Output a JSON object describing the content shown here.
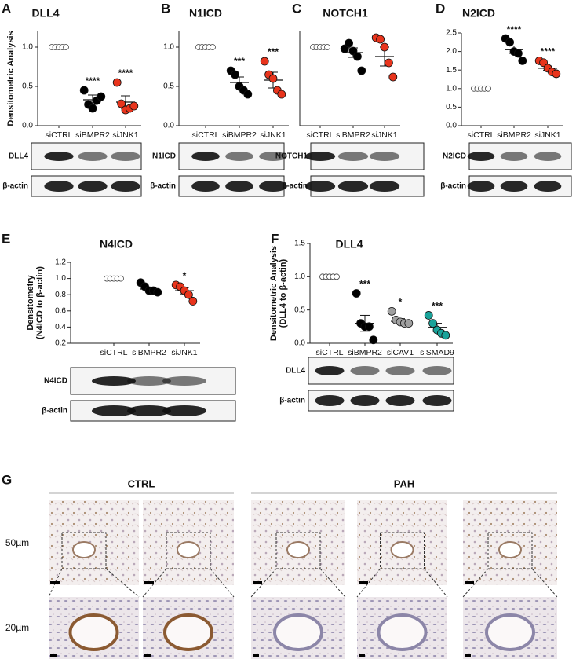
{
  "chart_data": [
    {
      "type": "dot",
      "panel": "A",
      "title": "DLL4",
      "ylabel": [
        "Densitometric Analysis"
      ],
      "categories": [
        "siCTRL",
        "siBMPR2",
        "siJNK1"
      ],
      "colors": [
        "#ffffff",
        "#000000",
        "#e8341c"
      ],
      "points": [
        [
          1,
          1,
          1,
          1,
          1
        ],
        [
          0.45,
          0.27,
          0.22,
          0.32,
          0.37
        ],
        [
          0.55,
          0.28,
          0.2,
          0.22,
          0.25
        ]
      ],
      "means": [
        1,
        0.33,
        0.3
      ],
      "sem": [
        0,
        0.06,
        0.08
      ],
      "stars": [
        null,
        "****",
        "****"
      ],
      "ylim": [
        0,
        1.2
      ],
      "yticks": [
        {
          "value": 0,
          "label": "0.0"
        },
        {
          "value": 0.5,
          "label": "0.5"
        },
        {
          "value": 1,
          "label": "1.0"
        }
      ],
      "blots": [
        {
          "label": "DLL4"
        },
        {
          "label": "β-actin"
        }
      ]
    },
    {
      "type": "dot",
      "panel": "B",
      "title": "N1ICD",
      "ylabel": [],
      "categories": [
        "siCTRL",
        "siBMPR2",
        "siJNK1"
      ],
      "colors": [
        "#ffffff",
        "#000000",
        "#e8341c"
      ],
      "points": [
        [
          1,
          1,
          1,
          1,
          1
        ],
        [
          0.7,
          0.65,
          0.5,
          0.45,
          0.4
        ],
        [
          0.82,
          0.65,
          0.6,
          0.45,
          0.4
        ]
      ],
      "means": [
        1,
        0.55,
        0.58
      ],
      "sem": [
        0,
        0.07,
        0.1
      ],
      "stars": [
        null,
        "***",
        "***"
      ],
      "ylim": [
        0,
        1.2
      ],
      "yticks": [
        {
          "value": 0,
          "label": "0.0"
        },
        {
          "value": 0.5,
          "label": "0.5"
        },
        {
          "value": 1,
          "label": "1.0"
        }
      ],
      "blots": [
        {
          "label": "N1ICD"
        },
        {
          "label": "β-actin"
        }
      ]
    },
    {
      "type": "dot",
      "panel": "C",
      "title": "NOTCH1",
      "ylabel": [],
      "categories": [
        "siCTRL",
        "siBMPR2",
        "siJNK1"
      ],
      "colors": [
        "#ffffff",
        "#000000",
        "#e8341c"
      ],
      "points": [
        [
          1,
          1,
          1,
          1,
          1
        ],
        [
          0.98,
          1.05,
          0.95,
          0.88,
          0.7
        ],
        [
          1.12,
          1.1,
          1.0,
          0.8,
          0.62
        ]
      ],
      "means": [
        1,
        0.93,
        0.88
      ],
      "sem": [
        0,
        0.06,
        0.12
      ],
      "stars": [
        null,
        null,
        null
      ],
      "ylim": [
        0,
        1.2
      ],
      "yticks": [],
      "blots": [
        {
          "label": "NOTCH1"
        },
        {
          "label": "β-actin"
        }
      ]
    },
    {
      "type": "dot",
      "panel": "D",
      "title": "N2ICD",
      "ylabel": [],
      "categories": [
        "siCTRL",
        "siBMPR2",
        "siJNK1"
      ],
      "colors": [
        "#ffffff",
        "#000000",
        "#e8341c"
      ],
      "points": [
        [
          1,
          1,
          1,
          1,
          1
        ],
        [
          2.35,
          2.25,
          2.0,
          1.95,
          1.75
        ],
        [
          1.75,
          1.7,
          1.55,
          1.45,
          1.4
        ]
      ],
      "means": [
        1,
        2.05,
        1.55
      ],
      "sem": [
        0,
        0.1,
        0.06
      ],
      "stars": [
        null,
        "****",
        "****"
      ],
      "ylim": [
        0,
        2.5
      ],
      "yticks": [
        {
          "value": 0,
          "label": "0.0"
        },
        {
          "value": 0.5,
          "label": "0.5"
        },
        {
          "value": 1,
          "label": "1.0"
        },
        {
          "value": 1.5,
          "label": "1.5"
        },
        {
          "value": 2,
          "label": "2.0"
        },
        {
          "value": 2.5,
          "label": "2.5"
        }
      ],
      "blots": [
        {
          "label": "N2ICD"
        },
        {
          "label": "β-actin"
        }
      ]
    },
    {
      "type": "dot",
      "panel": "E",
      "title": "N4ICD",
      "ylabel": [
        "Densitometry",
        "(N4ICD to β-actin)"
      ],
      "categories": [
        "siCTRL",
        "siBMPR2",
        "siJNK1"
      ],
      "colors": [
        "#ffffff",
        "#000000",
        "#e8341c"
      ],
      "points": [
        [
          1,
          1,
          1,
          1,
          1
        ],
        [
          0.95,
          0.9,
          0.85,
          0.85,
          0.83
        ],
        [
          0.92,
          0.9,
          0.85,
          0.8,
          0.72
        ]
      ],
      "means": [
        1,
        0.87,
        0.85
      ],
      "sem": [
        0,
        0.02,
        0.04
      ],
      "stars": [
        null,
        null,
        "*"
      ],
      "ylim": [
        0.2,
        1.2
      ],
      "yticks": [
        0.2,
        0.4,
        0.6,
        0.8,
        {
          "value": 1,
          "label": "1.0"
        },
        1.2
      ],
      "blots": [
        {
          "label": "N4ICD"
        },
        {
          "label": "β-actin"
        }
      ]
    },
    {
      "type": "dot",
      "panel": "F",
      "title": "DLL4",
      "ylabel": [
        "Densitometric Analysis",
        "(DLL4 to β-actin)"
      ],
      "categories": [
        "siCTRL",
        "siBMPR2",
        "siCAV1",
        "siSMAD9"
      ],
      "colors": [
        "#ffffff",
        "#000000",
        "#a0a0a0",
        "#1aa39a"
      ],
      "points": [
        [
          1,
          1,
          1,
          1,
          1
        ],
        [
          0.75,
          0.3,
          0.25,
          0.25,
          0.05
        ],
        [
          0.48,
          0.35,
          0.32,
          0.3,
          0.3
        ],
        [
          0.42,
          0.3,
          0.2,
          0.15,
          0.12
        ]
      ],
      "means": [
        1,
        0.3,
        0.33,
        0.24
      ],
      "sem": [
        0,
        0.12,
        0.04,
        0.06
      ],
      "stars": [
        null,
        "***",
        "*",
        "***"
      ],
      "ylim": [
        0,
        1.5
      ],
      "yticks": [
        {
          "value": 0,
          "label": "0.0"
        },
        {
          "value": 0.5,
          "label": "0.5"
        },
        {
          "value": 1,
          "label": "1.0"
        },
        {
          "value": 1.5,
          "label": "1.5"
        }
      ],
      "blots": [
        {
          "label": "DLL4"
        },
        {
          "label": "β-actin"
        }
      ]
    }
  ],
  "figure_g": {
    "panel": "G",
    "groups": [
      "CTRL",
      "PAH"
    ],
    "rows": [
      "50µm",
      "20µm"
    ]
  }
}
